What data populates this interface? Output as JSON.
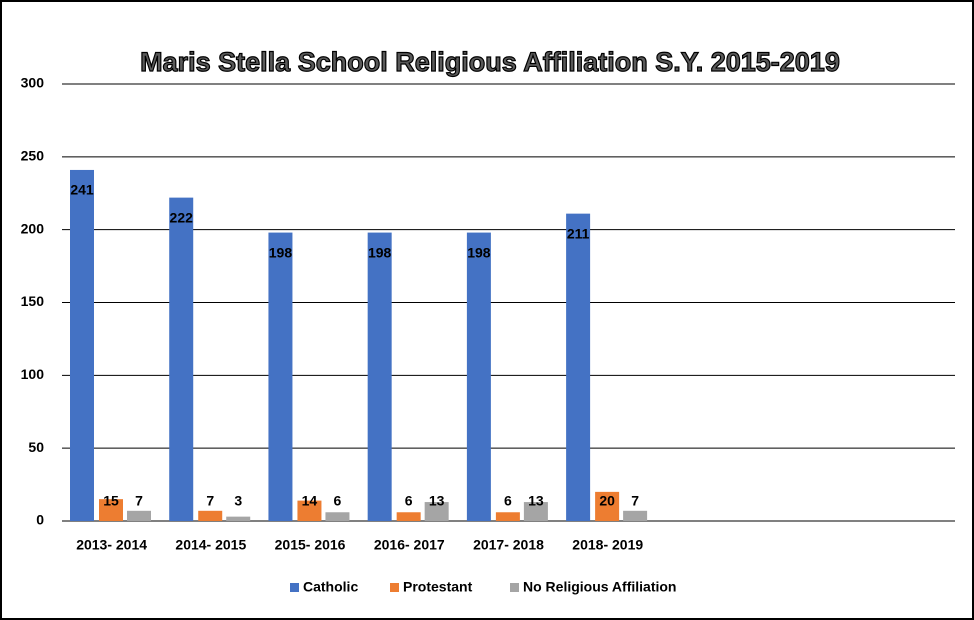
{
  "chart_data": {
    "type": "bar",
    "title": "Maris Stella School Religious Affiliation S.Y. 2015-2019",
    "categories": [
      "2013- 2014",
      "2014- 2015",
      "2015- 2016",
      "2016- 2017",
      "2017- 2018",
      "2018- 2019",
      null,
      null,
      null
    ],
    "series": [
      {
        "name": "Catholic",
        "color": "#4472c4",
        "values": [
          241,
          222,
          198,
          198,
          198,
          211,
          null,
          null,
          null
        ]
      },
      {
        "name": "Protestant",
        "color": "#ed7d31",
        "values": [
          15,
          7,
          14,
          6,
          6,
          20,
          null,
          null,
          null
        ]
      },
      {
        "name": "No Religious Affiliation",
        "color": "#a5a5a5",
        "values": [
          7,
          3,
          6,
          13,
          13,
          7,
          null,
          null,
          null
        ]
      }
    ],
    "ylim": [
      0,
      300
    ],
    "yticks": [
      0,
      50,
      100,
      150,
      200,
      250,
      300
    ],
    "grid": true,
    "legend": "bottom"
  }
}
